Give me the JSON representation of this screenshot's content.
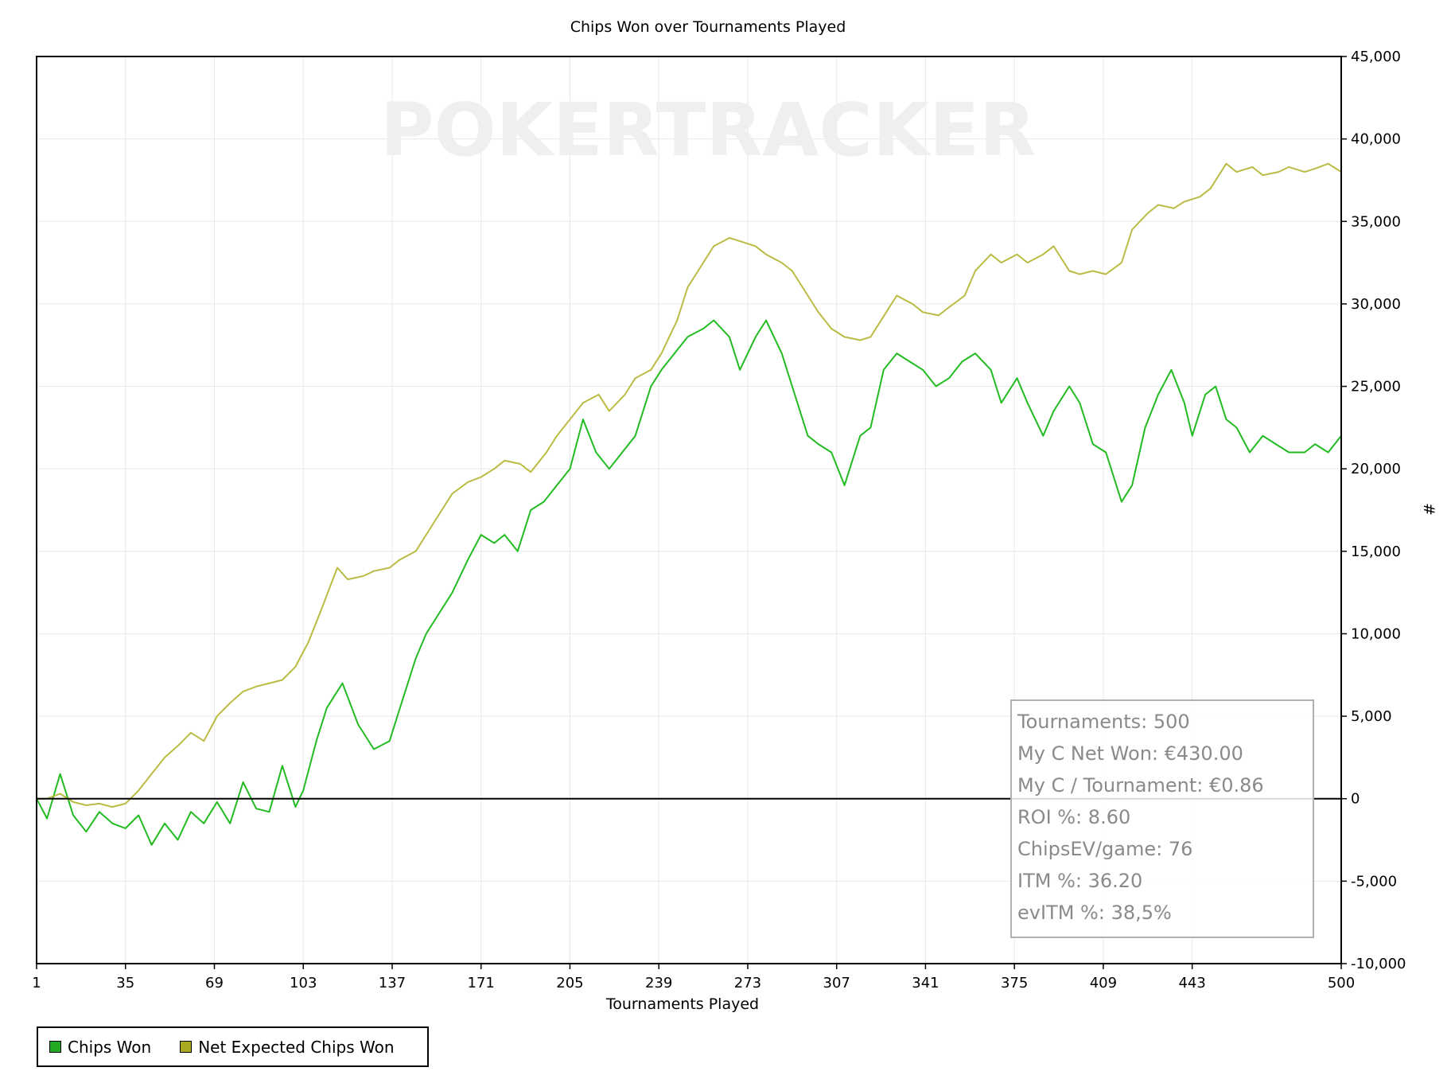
{
  "chart_data": {
    "type": "line",
    "title": "Chips Won over Tournaments Played",
    "xlabel": "Tournaments Played",
    "ylabel": "#",
    "xlim": [
      1,
      500
    ],
    "ylim": [
      -10000,
      45000
    ],
    "x_ticks": [
      "1",
      "35",
      "69",
      "103",
      "137",
      "171",
      "205",
      "239",
      "273",
      "307",
      "341",
      "375",
      "409",
      "443",
      "500"
    ],
    "y_ticks": [
      "45,000",
      "40,000",
      "35,000",
      "30,000",
      "25,000",
      "20,000",
      "15,000",
      "10,000",
      "5,000",
      "0",
      "-5,000",
      "-10,000"
    ],
    "watermark": "POKERTRACKER",
    "legend_position": "bottom-left",
    "grid": true,
    "series": [
      {
        "name": "Chips Won",
        "color": "#22bb22",
        "x": [
          1,
          5,
          10,
          15,
          20,
          25,
          30,
          35,
          40,
          45,
          50,
          55,
          60,
          65,
          70,
          75,
          80,
          85,
          90,
          95,
          100,
          103,
          108,
          112,
          118,
          124,
          130,
          136,
          140,
          146,
          150,
          156,
          160,
          166,
          171,
          176,
          180,
          185,
          190,
          195,
          200,
          205,
          210,
          215,
          220,
          225,
          230,
          236,
          240,
          245,
          250,
          256,
          260,
          266,
          270,
          276,
          280,
          286,
          290,
          296,
          300,
          305,
          310,
          316,
          320,
          325,
          330,
          335,
          340,
          345,
          350,
          355,
          360,
          366,
          370,
          376,
          380,
          386,
          390,
          396,
          400,
          405,
          410,
          416,
          420,
          425,
          430,
          435,
          440,
          443,
          448,
          452,
          456,
          460,
          465,
          470,
          475,
          480,
          486,
          490,
          495,
          500
        ],
        "y": [
          0,
          -1200,
          1500,
          -1000,
          -2000,
          -800,
          -1500,
          -1800,
          -1000,
          -2800,
          -1500,
          -2500,
          -800,
          -1500,
          -200,
          -1500,
          1000,
          -600,
          -800,
          2000,
          -500,
          500,
          3500,
          5500,
          7000,
          4500,
          3000,
          3500,
          5500,
          8500,
          10000,
          11500,
          12500,
          14500,
          16000,
          15500,
          16000,
          15000,
          17500,
          18000,
          19000,
          20000,
          23000,
          21000,
          20000,
          21000,
          22000,
          25000,
          26000,
          27000,
          28000,
          28500,
          29000,
          28000,
          26000,
          28000,
          29000,
          27000,
          25000,
          22000,
          21500,
          21000,
          19000,
          22000,
          22500,
          26000,
          27000,
          26500,
          26000,
          25000,
          25500,
          26500,
          27000,
          26000,
          24000,
          25500,
          24000,
          22000,
          23500,
          25000,
          24000,
          21500,
          21000,
          18000,
          19000,
          22500,
          24500,
          26000,
          24000,
          22000,
          24500,
          25000,
          23000,
          22500,
          21000,
          22000,
          21500,
          21000,
          21000,
          21500,
          21000,
          22000
        ]
      },
      {
        "name": "Net Expected Chips Won",
        "color": "#bbbb44",
        "x": [
          1,
          5,
          10,
          15,
          20,
          25,
          30,
          35,
          40,
          45,
          50,
          55,
          60,
          65,
          70,
          75,
          80,
          85,
          90,
          95,
          100,
          105,
          110,
          116,
          120,
          126,
          130,
          136,
          140,
          146,
          150,
          156,
          160,
          166,
          171,
          176,
          180,
          186,
          190,
          196,
          200,
          205,
          210,
          216,
          220,
          226,
          230,
          236,
          240,
          246,
          250,
          256,
          260,
          266,
          270,
          276,
          280,
          286,
          290,
          296,
          300,
          305,
          310,
          316,
          320,
          326,
          330,
          336,
          340,
          346,
          350,
          356,
          360,
          366,
          370,
          376,
          380,
          386,
          390,
          396,
          400,
          405,
          410,
          416,
          420,
          426,
          430,
          436,
          440,
          446,
          450,
          456,
          460,
          466,
          470,
          476,
          480,
          486,
          490,
          495,
          500
        ],
        "y": [
          0,
          0,
          300,
          -200,
          -400,
          -300,
          -500,
          -300,
          500,
          1500,
          2500,
          3200,
          4000,
          3500,
          5000,
          5800,
          6500,
          6800,
          7000,
          7200,
          8000,
          9500,
          11500,
          14000,
          13300,
          13500,
          13800,
          14000,
          14500,
          15000,
          16000,
          17500,
          18500,
          19200,
          19500,
          20000,
          20500,
          20300,
          19800,
          21000,
          22000,
          23000,
          24000,
          24500,
          23500,
          24500,
          25500,
          26000,
          27000,
          29000,
          31000,
          32500,
          33500,
          34000,
          33800,
          33500,
          33000,
          32500,
          32000,
          30500,
          29500,
          28500,
          28000,
          27800,
          28000,
          29500,
          30500,
          30000,
          29500,
          29300,
          29800,
          30500,
          32000,
          33000,
          32500,
          33000,
          32500,
          33000,
          33500,
          32000,
          31800,
          32000,
          31800,
          32500,
          34500,
          35500,
          36000,
          35800,
          36200,
          36500,
          37000,
          38500,
          38000,
          38300,
          37800,
          38000,
          38300,
          38000,
          38200,
          38500,
          38000
        ]
      }
    ]
  },
  "stats_box": {
    "lines": [
      "Tournaments: 500",
      "My C Net Won: €430.00",
      "My C / Tournament: €0.86",
      "ROI %: 8.60",
      "ChipsEV/game: 76",
      "ITM %: 36.20",
      "evITM %: 38,5%"
    ]
  },
  "legend": {
    "items": [
      {
        "label": "Chips Won",
        "color": "#22aa22"
      },
      {
        "label": "Net Expected Chips Won",
        "color": "#aaaa22"
      }
    ]
  }
}
